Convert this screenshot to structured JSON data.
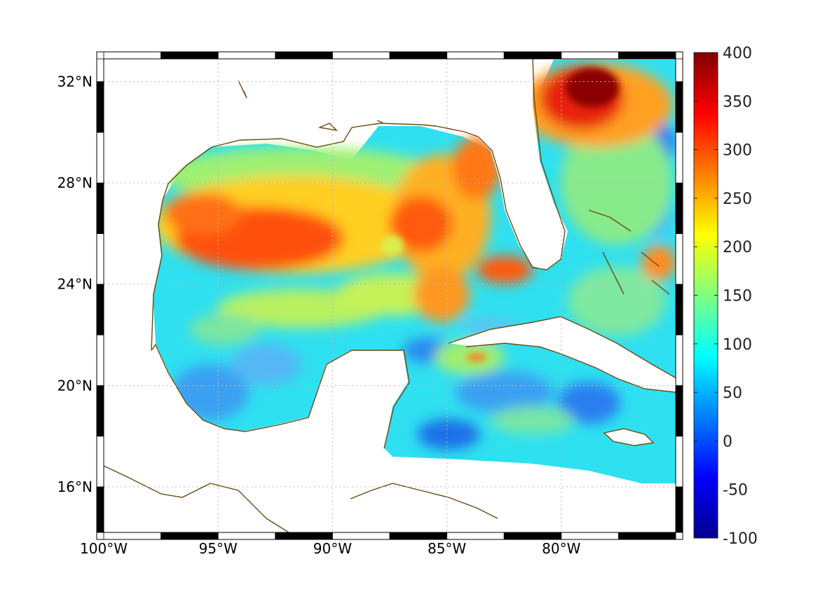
{
  "map": {
    "lon_range": [
      -100,
      -75
    ],
    "lat_range": [
      14.2,
      32.9
    ],
    "x_ticks": [
      {
        "lon": -100,
        "label": "100°W"
      },
      {
        "lon": -95,
        "label": "95°W"
      },
      {
        "lon": -90,
        "label": "90°W"
      },
      {
        "lon": -85,
        "label": "85°W"
      },
      {
        "lon": -80,
        "label": "80°W"
      }
    ],
    "y_ticks": [
      {
        "lat": 32,
        "label": "32°N"
      },
      {
        "lat": 28,
        "label": "28°N"
      },
      {
        "lat": 24,
        "label": "24°N"
      },
      {
        "lat": 20,
        "label": "20°N"
      },
      {
        "lat": 16,
        "label": "16°N"
      }
    ],
    "grid": "dotted",
    "frame": "black-white checkered",
    "coastline_color": "#6b4a12",
    "land_color": "#ffffff"
  },
  "colorbar": {
    "colormap": "jet",
    "range": [
      -100,
      400
    ],
    "ticks": [
      {
        "value": 400,
        "label": "400"
      },
      {
        "value": 350,
        "label": "350"
      },
      {
        "value": 300,
        "label": "300"
      },
      {
        "value": 250,
        "label": "250"
      },
      {
        "value": 200,
        "label": "200"
      },
      {
        "value": 150,
        "label": "150"
      },
      {
        "value": 100,
        "label": "100"
      },
      {
        "value": 50,
        "label": "50"
      },
      {
        "value": 0,
        "label": "0"
      },
      {
        "value": -50,
        "label": "-50"
      },
      {
        "value": -100,
        "label": "-100"
      }
    ],
    "position": "right"
  }
}
